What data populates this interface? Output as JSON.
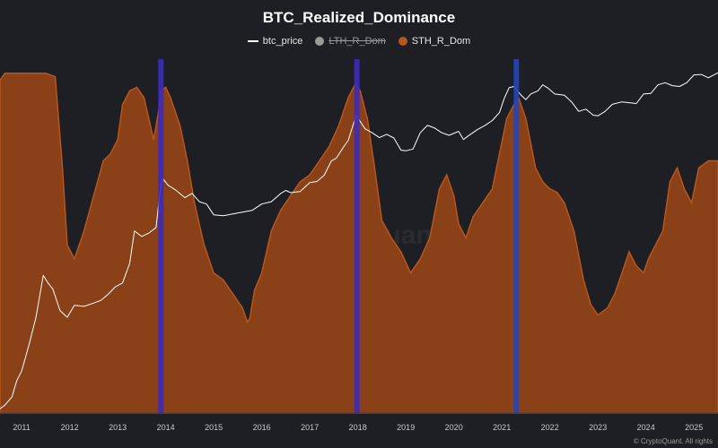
{
  "chart_data": {
    "type": "area",
    "title": "BTC_Realized_Dominance",
    "legend": [
      {
        "name": "btc_price",
        "marker": "line",
        "color": "#ffffff",
        "hidden": false
      },
      {
        "name": "LTH_R_Dom",
        "marker": "dot",
        "color": "#9a9a9a",
        "hidden": true
      },
      {
        "name": "STH_R_Dom",
        "marker": "dot",
        "color": "#b8561c",
        "hidden": false
      }
    ],
    "x_ticks": [
      "2011",
      "2012",
      "2013",
      "2014",
      "2015",
      "2016",
      "2017",
      "2018",
      "2019",
      "2020",
      "2021",
      "2022",
      "2023",
      "2024",
      "2025"
    ],
    "x_range": [
      2010.55,
      2025.5
    ],
    "grid": false,
    "legend_position": "top-center",
    "series": [
      {
        "name": "STH_R_Dom",
        "color": "#b8561c",
        "fill": "#8a4117",
        "style": "area",
        "x": [
          2010.55,
          2010.65,
          2010.9,
          2011.2,
          2011.5,
          2011.7,
          2011.85,
          2011.95,
          2012.1,
          2012.3,
          2012.5,
          2012.7,
          2012.85,
          2013.0,
          2013.1,
          2013.25,
          2013.4,
          2013.55,
          2013.75,
          2013.85,
          2013.9,
          2014.0,
          2014.1,
          2014.3,
          2014.45,
          2014.6,
          2014.8,
          2015.0,
          2015.2,
          2015.4,
          2015.6,
          2015.7,
          2015.75,
          2015.85,
          2016.0,
          2016.2,
          2016.4,
          2016.6,
          2016.8,
          2017.0,
          2017.2,
          2017.4,
          2017.6,
          2017.8,
          2017.95,
          2018.05,
          2018.2,
          2018.35,
          2018.5,
          2018.7,
          2018.9,
          2019.1,
          2019.3,
          2019.5,
          2019.7,
          2019.85,
          2020.0,
          2020.1,
          2020.25,
          2020.4,
          2020.6,
          2020.8,
          2020.95,
          2021.1,
          2021.25,
          2021.35,
          2021.5,
          2021.7,
          2021.85,
          2022.0,
          2022.15,
          2022.3,
          2022.5,
          2022.7,
          2022.85,
          2023.0,
          2023.2,
          2023.35,
          2023.5,
          2023.65,
          2023.8,
          2023.95,
          2024.05,
          2024.2,
          2024.35,
          2024.5,
          2024.65,
          2024.8,
          2024.95,
          2025.1,
          2025.3,
          2025.5
        ],
        "values": [
          95,
          97,
          97,
          97,
          97,
          96,
          70,
          48,
          44,
          52,
          62,
          72,
          74,
          78,
          88,
          92,
          93,
          90,
          78,
          86,
          92,
          93,
          90,
          82,
          72,
          60,
          48,
          40,
          38,
          34,
          30,
          26,
          27,
          35,
          40,
          52,
          58,
          62,
          66,
          68,
          72,
          76,
          82,
          90,
          94,
          92,
          84,
          70,
          55,
          50,
          46,
          40,
          44,
          50,
          64,
          68,
          62,
          54,
          50,
          56,
          60,
          64,
          74,
          84,
          88,
          90,
          84,
          70,
          66,
          64,
          63,
          60,
          52,
          38,
          31,
          28,
          30,
          34,
          40,
          46,
          42,
          40,
          44,
          48,
          52,
          66,
          70,
          64,
          60,
          70,
          72,
          72
        ],
        "ylim": [
          0,
          100
        ]
      },
      {
        "name": "btc_price",
        "color": "#ffffff",
        "style": "line",
        "scale": "log",
        "x": [
          2010.55,
          2010.65,
          2010.8,
          2010.9,
          2011.0,
          2011.15,
          2011.3,
          2011.45,
          2011.55,
          2011.65,
          2011.8,
          2011.95,
          2012.1,
          2012.3,
          2012.5,
          2012.65,
          2012.8,
          2012.95,
          2013.1,
          2013.25,
          2013.35,
          2013.5,
          2013.65,
          2013.8,
          2013.9,
          2013.95,
          2014.05,
          2014.2,
          2014.4,
          2014.55,
          2014.7,
          2014.85,
          2015.0,
          2015.2,
          2015.4,
          2015.6,
          2015.8,
          2016.0,
          2016.2,
          2016.4,
          2016.5,
          2016.6,
          2016.8,
          2017.0,
          2017.15,
          2017.3,
          2017.45,
          2017.55,
          2017.7,
          2017.8,
          2017.9,
          2017.97,
          2018.05,
          2018.15,
          2018.3,
          2018.45,
          2018.6,
          2018.75,
          2018.9,
          2019.0,
          2019.15,
          2019.3,
          2019.45,
          2019.6,
          2019.75,
          2019.9,
          2020.1,
          2020.2,
          2020.3,
          2020.5,
          2020.65,
          2020.8,
          2020.95,
          2021.05,
          2021.15,
          2021.25,
          2021.4,
          2021.5,
          2021.6,
          2021.75,
          2021.85,
          2021.95,
          2022.1,
          2022.3,
          2022.45,
          2022.6,
          2022.75,
          2022.9,
          2023.0,
          2023.15,
          2023.3,
          2023.5,
          2023.65,
          2023.8,
          2023.95,
          2024.1,
          2024.25,
          2024.4,
          2024.55,
          2024.7,
          2024.85,
          2025.0,
          2025.15,
          2025.3,
          2025.5
        ],
        "values": [
          0.06,
          0.07,
          0.1,
          0.2,
          0.3,
          0.9,
          3,
          18,
          13,
          10,
          4,
          3,
          5,
          4.8,
          5.5,
          6.2,
          8,
          11,
          13,
          30,
          120,
          95,
          110,
          140,
          900,
          1100,
          850,
          700,
          500,
          600,
          420,
          380,
          240,
          230,
          250,
          270,
          290,
          380,
          420,
          600,
          680,
          620,
          650,
          950,
          1000,
          1300,
          2400,
          2700,
          4300,
          5800,
          11000,
          17000,
          13000,
          9500,
          8000,
          6500,
          7500,
          6400,
          3800,
          3700,
          4000,
          8000,
          11000,
          9800,
          8000,
          7200,
          8500,
          6000,
          7000,
          9300,
          11000,
          13500,
          19000,
          35000,
          55000,
          58000,
          40000,
          33000,
          42000,
          48000,
          62000,
          55000,
          42000,
          40000,
          30000,
          20000,
          22000,
          17000,
          16500,
          20000,
          27000,
          30000,
          29000,
          28000,
          42000,
          43000,
          62000,
          68000,
          60000,
          58000,
          68000,
          95000,
          97000,
          84000,
          104000
        ],
        "ylim_log": [
          0.05,
          160000
        ]
      }
    ],
    "annotations": [
      {
        "type": "vertical_band",
        "x": 2013.9,
        "color": "#3b2bbd"
      },
      {
        "type": "vertical_band",
        "x": 2017.98,
        "color": "#3b2bbd"
      },
      {
        "type": "vertical_band",
        "x": 2021.3,
        "color": "#2446b8"
      }
    ]
  },
  "watermark": "CryptoQuant",
  "copyright": "© CryptoQuant. All rights"
}
